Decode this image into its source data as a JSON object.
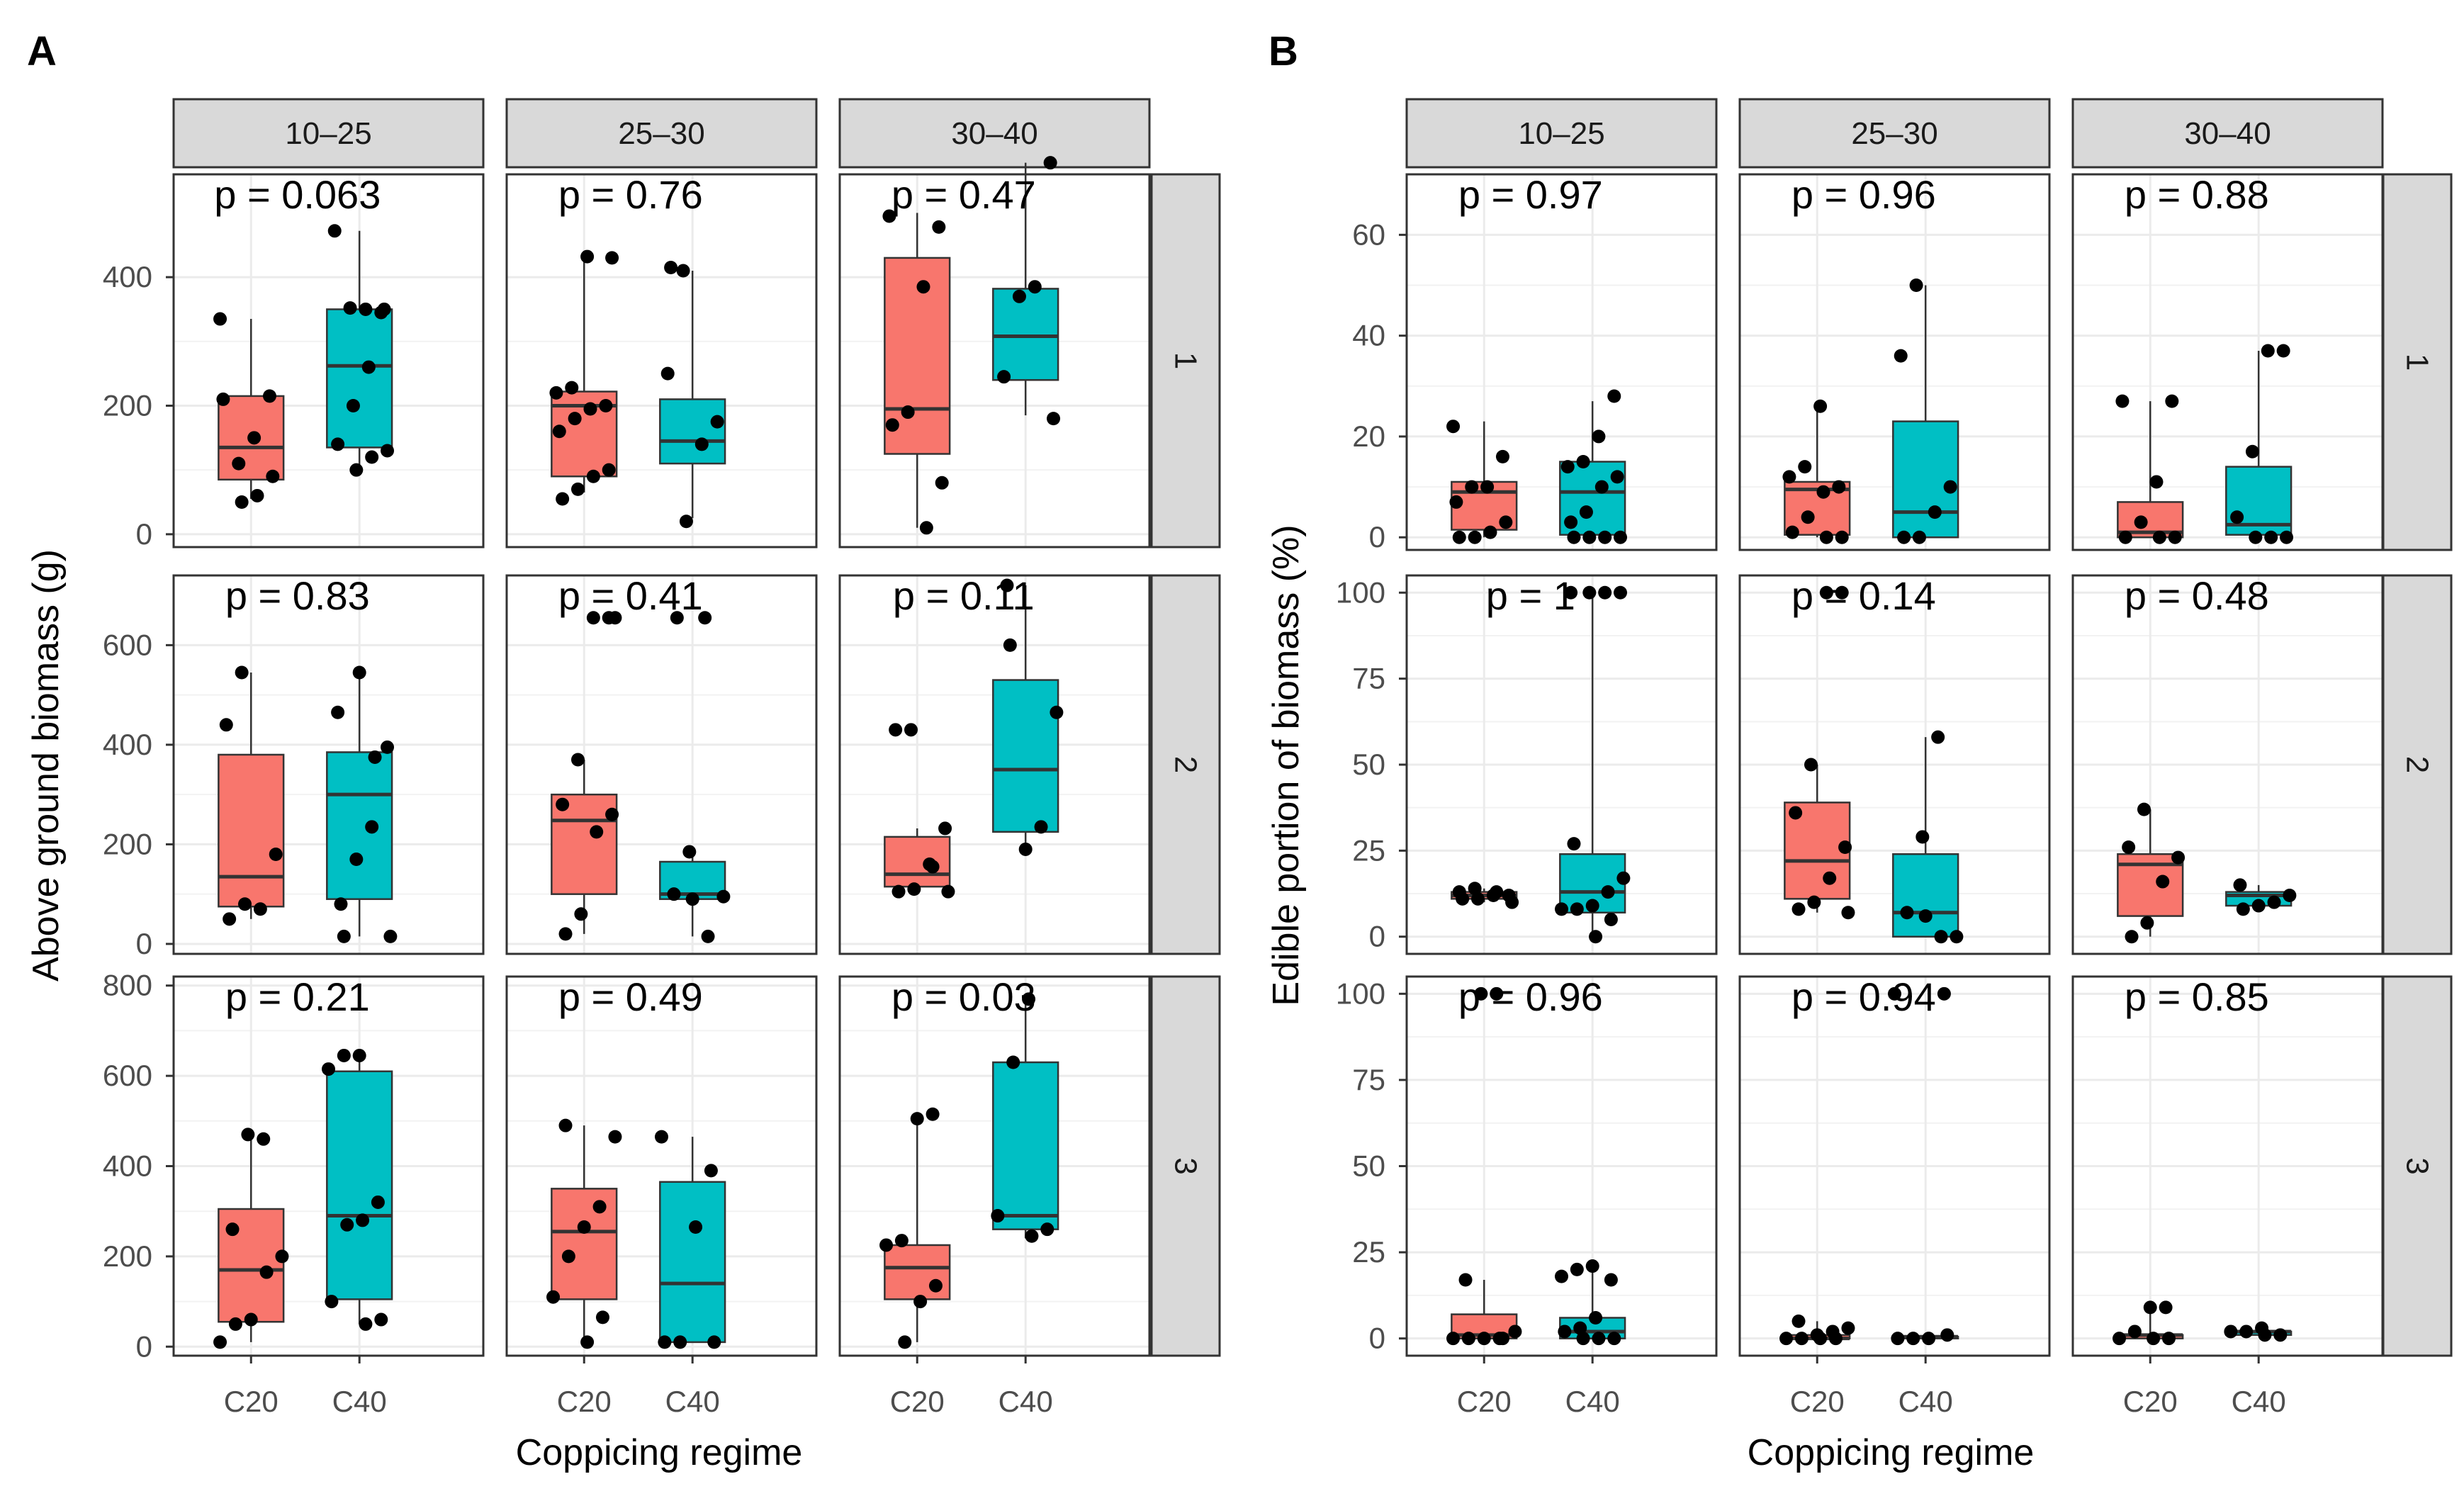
{
  "chart_data": [
    {
      "panel_label": "A",
      "type": "boxplot",
      "facet_columns": [
        "10–25",
        "25–30",
        "30–40"
      ],
      "facet_rows": [
        "1",
        "2",
        "3"
      ],
      "categories": [
        "C20",
        "C40"
      ],
      "xlabel": "Coppicing regime",
      "ylabel": "Above ground biomass (g)",
      "fill_colors": {
        "C20": "#F8766D",
        "C40": "#00BFC4"
      },
      "rows": [
        {
          "ylim": [
            -20,
            560
          ],
          "yticks": [
            0,
            200,
            400
          ],
          "cells": [
            {
              "p_label": "p = 0.063",
              "boxes": [
                {
                  "min": 55,
                  "q1": 85,
                  "median": 135,
                  "q3": 215,
                  "max": 335
                },
                {
                  "min": 100,
                  "q1": 135,
                  "median": 262,
                  "q3": 350,
                  "max": 472
                }
              ],
              "points": [
                [
                  335,
                  215,
                  150,
                  110,
                  210,
                  90,
                  60,
                  50
                ],
                [
                  345,
                  350,
                  352,
                  472,
                  350,
                  260,
                  200,
                  140,
                  130,
                  120,
                  100
                ]
              ]
            },
            {
              "p_label": "p = 0.76",
              "boxes": [
                {
                  "min": 65,
                  "q1": 90,
                  "median": 200,
                  "q3": 222,
                  "max": 432
                },
                {
                  "min": 25,
                  "q1": 110,
                  "median": 145,
                  "q3": 210,
                  "max": 410
                }
              ],
              "points": [
                [
                  432,
                  228,
                  220,
                  200,
                  195,
                  180,
                  160,
                  100,
                  90,
                  70,
                  55,
                  430
                ],
                [
                  410,
                  250,
                  175,
                  140,
                  20,
                  415
                ]
              ]
            },
            {
              "p_label": "p = 0.47",
              "boxes": [
                {
                  "min": 10,
                  "q1": 125,
                  "median": 195,
                  "q3": 430,
                  "max": 500
                },
                {
                  "min": 185,
                  "q1": 240,
                  "median": 308,
                  "q3": 382,
                  "max": 578
                }
              ],
              "points": [
                [
                  495,
                  478,
                  385,
                  190,
                  170,
                  80,
                  10
                ],
                [
                  578,
                  385,
                  370,
                  245,
                  180
                ]
              ]
            }
          ]
        },
        {
          "ylim": [
            -20,
            740
          ],
          "yticks": [
            0,
            200,
            400,
            600
          ],
          "cells": [
            {
              "p_label": "p = 0.83",
              "boxes": [
                {
                  "min": 50,
                  "q1": 75,
                  "median": 135,
                  "q3": 380,
                  "max": 545
                },
                {
                  "min": 15,
                  "q1": 90,
                  "median": 300,
                  "q3": 385,
                  "max": 545
                }
              ],
              "points": [
                [
                  545,
                  440,
                  180,
                  70,
                  80,
                  50
                ],
                [
                  465,
                  395,
                  235,
                  170,
                  80,
                  15,
                  375,
                  545,
                  15
                ]
              ]
            },
            {
              "p_label": "p = 0.41",
              "boxes": [
                {
                  "min": 20,
                  "q1": 100,
                  "median": 248,
                  "q3": 300,
                  "max": 370
                },
                {
                  "min": 15,
                  "q1": 90,
                  "median": 100,
                  "q3": 165,
                  "max": 185
                }
              ],
              "points": [
                [
                  655,
                  655,
                  370,
                  280,
                  260,
                  225,
                  60,
                  20,
                  655
                ],
                [
                  655,
                  185,
                  100,
                  95,
                  15,
                  90,
                  655
                ]
              ]
            },
            {
              "p_label": "p = 0.11",
              "boxes": [
                {
                  "min": 105,
                  "q1": 115,
                  "median": 140,
                  "q3": 215,
                  "max": 232
                },
                {
                  "min": 200,
                  "q1": 225,
                  "median": 350,
                  "q3": 530,
                  "max": 720
                }
              ],
              "points": [
                [
                  430,
                  430,
                  232,
                  160,
                  110,
                  105,
                  105,
                  155
                ],
                [
                  720,
                  465,
                  235,
                  190,
                  600
                ]
              ]
            }
          ]
        },
        {
          "ylim": [
            -20,
            820
          ],
          "yticks": [
            0,
            200,
            400,
            600,
            800
          ],
          "cells": [
            {
              "p_label": "p = 0.21",
              "boxes": [
                {
                  "min": 10,
                  "q1": 55,
                  "median": 170,
                  "q3": 305,
                  "max": 460
                },
                {
                  "min": 50,
                  "q1": 105,
                  "median": 290,
                  "q3": 610,
                  "max": 645
                }
              ],
              "points": [
                [
                  460,
                  470,
                  260,
                  200,
                  165,
                  60,
                  50,
                  10
                ],
                [
                  645,
                  645,
                  615,
                  320,
                  280,
                  270,
                  100,
                  60,
                  50
                ]
              ]
            },
            {
              "p_label": "p = 0.49",
              "boxes": [
                {
                  "min": 10,
                  "q1": 105,
                  "median": 255,
                  "q3": 350,
                  "max": 490
                },
                {
                  "min": 10,
                  "q1": 10,
                  "median": 140,
                  "q3": 365,
                  "max": 465
                }
              ],
              "points": [
                [
                  490,
                  465,
                  310,
                  265,
                  200,
                  110,
                  65,
                  10
                ],
                [
                  465,
                  390,
                  265,
                  10,
                  10,
                  10
                ]
              ]
            },
            {
              "p_label": "p = 0.03",
              "boxes": [
                {
                  "min": 10,
                  "q1": 105,
                  "median": 175,
                  "q3": 225,
                  "max": 515
                },
                {
                  "min": 240,
                  "q1": 260,
                  "median": 290,
                  "q3": 630,
                  "max": 770
                }
              ],
              "points": [
                [
                  515,
                  505,
                  235,
                  225,
                  135,
                  100,
                  10
                ],
                [
                  770,
                  630,
                  290,
                  260,
                  245
                ]
              ]
            }
          ]
        }
      ]
    },
    {
      "panel_label": "B",
      "type": "boxplot",
      "facet_columns": [
        "10–25",
        "25–30",
        "30–40"
      ],
      "facet_rows": [
        "1",
        "2",
        "3"
      ],
      "categories": [
        "C20",
        "C40"
      ],
      "xlabel": "Coppicing regime",
      "ylabel": "Edible portion of biomass (%)",
      "fill_colors": {
        "C20": "#F8766D",
        "C40": "#00BFC4"
      },
      "rows": [
        {
          "ylim": [
            -2.5,
            72
          ],
          "yticks": [
            0,
            20,
            40,
            60
          ],
          "cells": [
            {
              "p_label": "p = 0.97",
              "boxes": [
                {
                  "min": 0,
                  "q1": 1.5,
                  "median": 9,
                  "q3": 11,
                  "max": 23
                },
                {
                  "min": 0,
                  "q1": 0.5,
                  "median": 9,
                  "q3": 15,
                  "max": 27
                }
              ],
              "points": [
                [
                  22,
                  16,
                  10,
                  10,
                  7,
                  3,
                  1,
                  0,
                  0
                ],
                [
                  28,
                  20,
                  15,
                  14,
                  12,
                  10,
                  5,
                  3,
                  0,
                  0,
                  0,
                  0
                ]
              ]
            },
            {
              "p_label": "p = 0.96",
              "boxes": [
                {
                  "min": 0,
                  "q1": 0.5,
                  "median": 9.5,
                  "q3": 11,
                  "max": 26
                },
                {
                  "min": 0,
                  "q1": 0,
                  "median": 5,
                  "q3": 23,
                  "max": 50
                }
              ],
              "points": [
                [
                  26,
                  14,
                  12,
                  10,
                  9,
                  4,
                  1,
                  0,
                  0
                ],
                [
                  50,
                  36,
                  10,
                  5,
                  0,
                  0
                ]
              ]
            },
            {
              "p_label": "p = 0.88",
              "boxes": [
                {
                  "min": 0,
                  "q1": 0,
                  "median": 1,
                  "q3": 7,
                  "max": 27
                },
                {
                  "min": 0,
                  "q1": 0.5,
                  "median": 2.5,
                  "q3": 14,
                  "max": 37
                }
              ],
              "points": [
                [
                  27,
                  27,
                  11,
                  3,
                  0,
                  0,
                  0
                ],
                [
                  37,
                  37,
                  17,
                  4,
                  0,
                  0,
                  0
                ]
              ]
            }
          ]
        },
        {
          "ylim": [
            -5,
            105
          ],
          "yticks": [
            0,
            25,
            50,
            75,
            100
          ],
          "cells": [
            {
              "p_label": "p = 1",
              "boxes": [
                {
                  "min": 10,
                  "q1": 11,
                  "median": 12,
                  "q3": 13,
                  "max": 14
                },
                {
                  "min": 0,
                  "q1": 7,
                  "median": 13,
                  "q3": 24,
                  "max": 100
                }
              ],
              "points": [
                [
                  14,
                  13,
                  12,
                  12,
                  11,
                  11,
                  10,
                  13
                ],
                [
                  100,
                  100,
                  100,
                  100,
                  27,
                  17,
                  13,
                  9,
                  8,
                  8,
                  5,
                  0
                ]
              ]
            },
            {
              "p_label": "p = 0.14",
              "boxes": [
                {
                  "min": 7,
                  "q1": 11,
                  "median": 22,
                  "q3": 39,
                  "max": 50
                },
                {
                  "min": 0,
                  "q1": 0,
                  "median": 7,
                  "q3": 24,
                  "max": 58
                }
              ],
              "points": [
                [
                  100,
                  100,
                  50,
                  36,
                  26,
                  17,
                  10,
                  8,
                  7
                ],
                [
                  58,
                  29,
                  7,
                  0,
                  0,
                  6
                ]
              ]
            },
            {
              "p_label": "p = 0.48",
              "boxes": [
                {
                  "min": 0,
                  "q1": 6,
                  "median": 21,
                  "q3": 24,
                  "max": 37
                },
                {
                  "min": 9,
                  "q1": 9,
                  "median": 12,
                  "q3": 13,
                  "max": 15
                }
              ],
              "points": [
                [
                  37,
                  26,
                  23,
                  16,
                  4,
                  0
                ],
                [
                  15,
                  12,
                  10,
                  9,
                  8
                ]
              ]
            }
          ]
        },
        {
          "ylim": [
            -5,
            105
          ],
          "yticks": [
            0,
            25,
            50,
            75,
            100
          ],
          "cells": [
            {
              "p_label": "p = 0.96",
              "boxes": [
                {
                  "min": 0,
                  "q1": 0,
                  "median": 1,
                  "q3": 7,
                  "max": 17
                },
                {
                  "min": 0,
                  "q1": 0,
                  "median": 2,
                  "q3": 6,
                  "max": 20
                }
              ],
              "points": [
                [
                  100,
                  100,
                  17,
                  2,
                  0,
                  0,
                  0,
                  0,
                  0
                ],
                [
                  21,
                  20,
                  18,
                  17,
                  6,
                  3,
                  2,
                  0,
                  0,
                  0
                ]
              ]
            },
            {
              "p_label": "p = 0.94",
              "boxes": [
                {
                  "min": 0,
                  "q1": 0,
                  "median": 0,
                  "q3": 1,
                  "max": 5
                },
                {
                  "min": 0,
                  "q1": 0,
                  "median": 0.5,
                  "q3": 0.5,
                  "max": 1
                }
              ],
              "points": [
                [
                  5,
                  3,
                  2,
                  1,
                  0,
                  0,
                  0,
                  0
                ],
                [
                  100,
                  100,
                  0,
                  0,
                  0,
                  1
                ]
              ]
            },
            {
              "p_label": "p = 0.85",
              "boxes": [
                {
                  "min": 0,
                  "q1": 0,
                  "median": 1,
                  "q3": 1,
                  "max": 9
                },
                {
                  "min": 1,
                  "q1": 1,
                  "median": 2,
                  "q3": 2,
                  "max": 3
                }
              ],
              "points": [
                [
                  9,
                  9,
                  2,
                  0,
                  0,
                  0
                ],
                [
                  3,
                  2,
                  2,
                  1,
                  1
                ]
              ]
            }
          ]
        }
      ]
    }
  ]
}
